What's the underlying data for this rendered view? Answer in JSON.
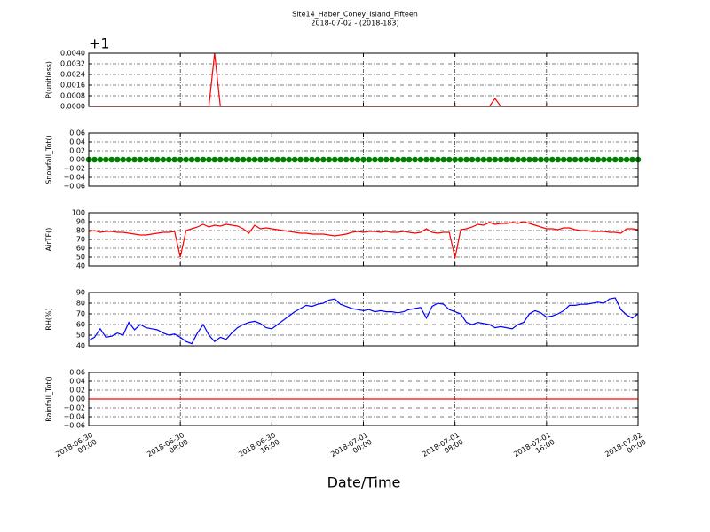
{
  "chart_data": {
    "type": "line",
    "title": "Site14_Haber_Coney_Island_Fifteen",
    "subtitle": "2018-07-02 - (2018-183)",
    "xlabel": "Date/Time",
    "grid": true,
    "x": [
      "2018-06-30 00:00",
      "2018-06-30 00:30",
      "2018-06-30 01:00",
      "2018-06-30 01:30",
      "2018-06-30 02:00",
      "2018-06-30 02:30",
      "2018-06-30 03:00",
      "2018-06-30 03:30",
      "2018-06-30 04:00",
      "2018-06-30 04:30",
      "2018-06-30 05:00",
      "2018-06-30 05:30",
      "2018-06-30 06:00",
      "2018-06-30 06:30",
      "2018-06-30 07:00",
      "2018-06-30 07:30",
      "2018-06-30 08:00",
      "2018-06-30 08:30",
      "2018-06-30 09:00",
      "2018-06-30 09:30",
      "2018-06-30 10:00",
      "2018-06-30 10:30",
      "2018-06-30 11:00",
      "2018-06-30 11:30",
      "2018-06-30 12:00",
      "2018-06-30 12:30",
      "2018-06-30 13:00",
      "2018-06-30 13:30",
      "2018-06-30 14:00",
      "2018-06-30 14:30",
      "2018-06-30 15:00",
      "2018-06-30 15:30",
      "2018-06-30 16:00",
      "2018-06-30 16:30",
      "2018-06-30 17:00",
      "2018-06-30 17:30",
      "2018-06-30 18:00",
      "2018-06-30 18:30",
      "2018-06-30 19:00",
      "2018-06-30 19:30",
      "2018-06-30 20:00",
      "2018-06-30 20:30",
      "2018-06-30 21:00",
      "2018-06-30 21:30",
      "2018-06-30 22:00",
      "2018-06-30 22:30",
      "2018-06-30 23:00",
      "2018-06-30 23:30",
      "2018-07-01 00:00",
      "2018-07-01 00:30",
      "2018-07-01 01:00",
      "2018-07-01 01:30",
      "2018-07-01 02:00",
      "2018-07-01 02:30",
      "2018-07-01 03:00",
      "2018-07-01 03:30",
      "2018-07-01 04:00",
      "2018-07-01 04:30",
      "2018-07-01 05:00",
      "2018-07-01 05:30",
      "2018-07-01 06:00",
      "2018-07-01 06:30",
      "2018-07-01 07:00",
      "2018-07-01 07:30",
      "2018-07-01 08:00",
      "2018-07-01 08:30",
      "2018-07-01 09:00",
      "2018-07-01 09:30",
      "2018-07-01 10:00",
      "2018-07-01 10:30",
      "2018-07-01 11:00",
      "2018-07-01 11:30",
      "2018-07-01 12:00",
      "2018-07-01 12:30",
      "2018-07-01 13:00",
      "2018-07-01 13:30",
      "2018-07-01 14:00",
      "2018-07-01 14:30",
      "2018-07-01 15:00",
      "2018-07-01 15:30",
      "2018-07-01 16:00",
      "2018-07-01 16:30",
      "2018-07-01 17:00",
      "2018-07-01 17:30",
      "2018-07-01 18:00",
      "2018-07-01 18:30",
      "2018-07-01 19:00",
      "2018-07-01 19:30",
      "2018-07-01 20:00",
      "2018-07-01 20:30",
      "2018-07-01 21:00",
      "2018-07-01 21:30",
      "2018-07-01 22:00",
      "2018-07-01 22:30",
      "2018-07-01 23:00",
      "2018-07-01 23:30",
      "2018-07-02 00:00"
    ],
    "xlim": [
      "2018-06-30 00:00",
      "2018-07-02 00:00"
    ],
    "xticks": [
      {
        "value": "2018-06-30 00:00",
        "label": "2018-06-30\n00:00"
      },
      {
        "value": "2018-06-30 08:00",
        "label": "2018-06-30\n08:00"
      },
      {
        "value": "2018-06-30 16:00",
        "label": "2018-06-30\n16:00"
      },
      {
        "value": "2018-07-01 00:00",
        "label": "2018-07-01\n00:00"
      },
      {
        "value": "2018-07-01 08:00",
        "label": "2018-07-01\n08:00"
      },
      {
        "value": "2018-07-01 16:00",
        "label": "2018-07-01\n16:00"
      },
      {
        "value": "2018-07-02 00:00",
        "label": "2018-07-02\n00:00"
      }
    ],
    "panels": [
      {
        "ylabel": "P(unitless)",
        "offset_text": "+1",
        "ylim": [
          0,
          0.004
        ],
        "yticks": [
          {
            "value": 0,
            "label": "0.0000"
          },
          0.0008,
          0.0016,
          0.0024,
          0.0032,
          {
            "value": 0.004,
            "label": "0.0040"
          }
        ],
        "series": [
          {
            "color": "#ff0000",
            "values": [
              0,
              0,
              0,
              0,
              0,
              0,
              0,
              0,
              0,
              0,
              0,
              0,
              0,
              0,
              0,
              0,
              0,
              0,
              0,
              0,
              0,
              0,
              0.004,
              0,
              0,
              0,
              0,
              0,
              0,
              0,
              0,
              0,
              0,
              0,
              0,
              0,
              0,
              0,
              0,
              0,
              0,
              0,
              0,
              0,
              0,
              0,
              0,
              0,
              0,
              0,
              0,
              0,
              0,
              0,
              0,
              0,
              0,
              0,
              0,
              0,
              0,
              0,
              0,
              0,
              0,
              0,
              0,
              0,
              0,
              0,
              0,
              0.0006,
              0,
              0,
              0,
              0,
              0,
              0,
              0,
              0,
              0,
              0,
              0,
              0,
              0,
              0,
              0,
              0,
              0,
              0,
              0,
              0,
              0,
              0,
              0,
              0,
              0
            ]
          }
        ]
      },
      {
        "ylabel": "Snowfall_Tot()",
        "ylim": [
          -0.06,
          0.06
        ],
        "yticks": [
          {
            "value": -0.06,
            "label": "−0.06"
          },
          {
            "value": -0.04,
            "label": "−0.04"
          },
          {
            "value": -0.02,
            "label": "−0.02"
          },
          {
            "value": 0,
            "label": "0.00"
          },
          0.02,
          0.04,
          0.06
        ],
        "series": [
          {
            "color": "#008000",
            "marker": true,
            "values": [
              0,
              0,
              0,
              0,
              0,
              0,
              0,
              0,
              0,
              0,
              0,
              0,
              0,
              0,
              0,
              0,
              0,
              0,
              0,
              0,
              0,
              0,
              0,
              0,
              0,
              0,
              0,
              0,
              0,
              0,
              0,
              0,
              0,
              0,
              0,
              0,
              0,
              0,
              0,
              0,
              0,
              0,
              0,
              0,
              0,
              0,
              0,
              0,
              0,
              0,
              0,
              0,
              0,
              0,
              0,
              0,
              0,
              0,
              0,
              0,
              0,
              0,
              0,
              0,
              0,
              0,
              0,
              0,
              0,
              0,
              0,
              0,
              0,
              0,
              0,
              0,
              0,
              0,
              0,
              0,
              0,
              0,
              0,
              0,
              0,
              0,
              0,
              0,
              0,
              0,
              0,
              0,
              0,
              0,
              0,
              0,
              0
            ]
          }
        ]
      },
      {
        "ylabel": "AirTF()",
        "ylim": [
          40,
          100
        ],
        "yticks": [
          40,
          50,
          60,
          70,
          80,
          90,
          100
        ],
        "series": [
          {
            "color": "#ff0000",
            "values": [
              79,
              80,
              78,
              79,
              79,
              78,
              78,
              77,
              76,
              75,
              75,
              76,
              77,
              78,
              78,
              79,
              50,
              80,
              82,
              84,
              87,
              84,
              86,
              85,
              87,
              86,
              85,
              82,
              77,
              86,
              82,
              83,
              82,
              81,
              80,
              79,
              78,
              77,
              77,
              76,
              76,
              76,
              75,
              74,
              75,
              76,
              78,
              79,
              78,
              79,
              79,
              78,
              79,
              78,
              78,
              79,
              78,
              77,
              78,
              82,
              78,
              77,
              78,
              78,
              49,
              81,
              82,
              84,
              87,
              86,
              89,
              87,
              88,
              88,
              89,
              88,
              90,
              88,
              86,
              84,
              82,
              82,
              81,
              83,
              83,
              81,
              80,
              80,
              79,
              79,
              79,
              78,
              78,
              77,
              82,
              82,
              81
            ]
          }
        ]
      },
      {
        "ylabel": "RH(%)",
        "ylim": [
          40,
          90
        ],
        "yticks": [
          40,
          50,
          60,
          70,
          80,
          90
        ],
        "series": [
          {
            "color": "#0000ff",
            "values": [
              45,
              48,
              56,
              48,
              49,
              52,
              50,
              62,
              55,
              60,
              57,
              56,
              55,
              52,
              50,
              51,
              48,
              44,
              42,
              52,
              60,
              50,
              44,
              48,
              46,
              52,
              57,
              60,
              62,
              63,
              61,
              57,
              56,
              60,
              64,
              68,
              72,
              75,
              78,
              77,
              79,
              80,
              83,
              84,
              79,
              77,
              75,
              74,
              73,
              74,
              72,
              73,
              72,
              72,
              71,
              72,
              74,
              75,
              76,
              66,
              77,
              80,
              79,
              74,
              72,
              70,
              62,
              60,
              62,
              61,
              60,
              57,
              58,
              57,
              56,
              60,
              62,
              70,
              73,
              71,
              67,
              68,
              70,
              73,
              78,
              78,
              79,
              79,
              80,
              81,
              80,
              84,
              85,
              74,
              69,
              66,
              70
            ]
          }
        ]
      },
      {
        "ylabel": "Rainfall_Tot()",
        "ylim": [
          -0.06,
          0.06
        ],
        "yticks": [
          {
            "value": -0.06,
            "label": "−0.06"
          },
          {
            "value": -0.04,
            "label": "−0.04"
          },
          {
            "value": -0.02,
            "label": "−0.02"
          },
          {
            "value": 0,
            "label": "0.00"
          },
          0.02,
          0.04,
          0.06
        ],
        "series": [
          {
            "color": "#ff0000",
            "values": [
              0,
              0,
              0,
              0,
              0,
              0,
              0,
              0,
              0,
              0,
              0,
              0,
              0,
              0,
              0,
              0,
              0,
              0,
              0,
              0,
              0,
              0,
              0,
              0,
              0,
              0,
              0,
              0,
              0,
              0,
              0,
              0,
              0,
              0,
              0,
              0,
              0,
              0,
              0,
              0,
              0,
              0,
              0,
              0,
              0,
              0,
              0,
              0,
              0,
              0,
              0,
              0,
              0,
              0,
              0,
              0,
              0,
              0,
              0,
              0,
              0,
              0,
              0,
              0,
              0,
              0,
              0,
              0,
              0,
              0,
              0,
              0,
              0,
              0,
              0,
              0,
              0,
              0,
              0,
              0,
              0,
              0,
              0,
              0,
              0,
              0,
              0,
              0,
              0,
              0,
              0,
              0,
              0,
              0,
              0,
              0,
              0
            ]
          }
        ]
      }
    ]
  }
}
